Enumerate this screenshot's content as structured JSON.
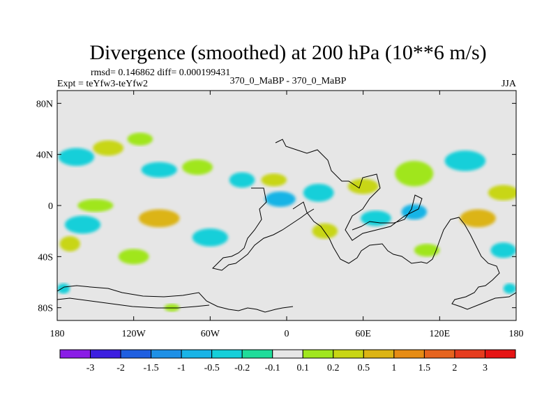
{
  "chart_data": {
    "type": "heatmap",
    "title": "Divergence (smoothed) at 200 hPa (10**6 m/s)",
    "stats": "rmsd= 0.146862 diff= 0.000199431",
    "left_label": "Expt = teYfw3-teYfw2",
    "center_label": "370_0_MaBP - 370_0_MaBP",
    "right_label": "JJA",
    "x_axis": {
      "range": [
        -180,
        180
      ],
      "ticks": [
        -180,
        -120,
        -60,
        0,
        60,
        120,
        180
      ],
      "tick_labels": [
        "180",
        "120W",
        "60W",
        "0",
        "60E",
        "120E",
        "180"
      ]
    },
    "y_axis": {
      "range": [
        -90,
        90
      ],
      "ticks": [
        80,
        40,
        0,
        -40,
        -80
      ],
      "tick_labels": [
        "80N",
        "40N",
        "0",
        "40S",
        "80S"
      ]
    },
    "colorbar": {
      "labels": [
        "-3",
        "-2",
        "-1.5",
        "-1",
        "-0.5",
        "-0.2",
        "-0.1",
        "0.1",
        "0.2",
        "0.5",
        "1",
        "1.5",
        "2",
        "3"
      ],
      "colors": [
        "#8a1ce6",
        "#3c1ee0",
        "#1f5fe0",
        "#1e90e6",
        "#19b4e6",
        "#15cfd9",
        "#20dc9a",
        "#e6e6e6",
        "#a0e61e",
        "#c8d614",
        "#dcb414",
        "#e68c14",
        "#e6641e",
        "#e63c1e",
        "#e61414"
      ]
    },
    "blobs": [
      {
        "lon": -165,
        "lat": 38,
        "rx": 14,
        "ry": 7,
        "color_index": 5
      },
      {
        "lon": -140,
        "lat": 45,
        "rx": 12,
        "ry": 6,
        "color_index": 9
      },
      {
        "lon": -115,
        "lat": 52,
        "rx": 10,
        "ry": 5,
        "color_index": 8
      },
      {
        "lon": -100,
        "lat": 28,
        "rx": 14,
        "ry": 6,
        "color_index": 5
      },
      {
        "lon": -70,
        "lat": 30,
        "rx": 12,
        "ry": 6,
        "color_index": 8
      },
      {
        "lon": -35,
        "lat": 20,
        "rx": 10,
        "ry": 6,
        "color_index": 5
      },
      {
        "lon": -5,
        "lat": 5,
        "rx": 12,
        "ry": 6,
        "color_index": 4
      },
      {
        "lon": -10,
        "lat": 20,
        "rx": 10,
        "ry": 5,
        "color_index": 9
      },
      {
        "lon": 25,
        "lat": 10,
        "rx": 12,
        "ry": 7,
        "color_index": 5
      },
      {
        "lon": 60,
        "lat": 15,
        "rx": 12,
        "ry": 6,
        "color_index": 9
      },
      {
        "lon": 100,
        "lat": 25,
        "rx": 15,
        "ry": 10,
        "color_index": 8
      },
      {
        "lon": 140,
        "lat": 35,
        "rx": 16,
        "ry": 8,
        "color_index": 5
      },
      {
        "lon": 170,
        "lat": 10,
        "rx": 12,
        "ry": 6,
        "color_index": 9
      },
      {
        "lon": -150,
        "lat": 0,
        "rx": 14,
        "ry": 5,
        "color_index": 8
      },
      {
        "lon": -160,
        "lat": -15,
        "rx": 14,
        "ry": 7,
        "color_index": 5
      },
      {
        "lon": -100,
        "lat": -10,
        "rx": 16,
        "ry": 7,
        "color_index": 10
      },
      {
        "lon": -60,
        "lat": -25,
        "rx": 14,
        "ry": 7,
        "color_index": 5
      },
      {
        "lon": -120,
        "lat": -40,
        "rx": 12,
        "ry": 6,
        "color_index": 8
      },
      {
        "lon": 30,
        "lat": -20,
        "rx": 10,
        "ry": 6,
        "color_index": 9
      },
      {
        "lon": 70,
        "lat": -10,
        "rx": 12,
        "ry": 6,
        "color_index": 5
      },
      {
        "lon": 100,
        "lat": -5,
        "rx": 10,
        "ry": 6,
        "color_index": 4
      },
      {
        "lon": 150,
        "lat": -10,
        "rx": 14,
        "ry": 7,
        "color_index": 10
      },
      {
        "lon": 170,
        "lat": -35,
        "rx": 10,
        "ry": 6,
        "color_index": 5
      },
      {
        "lon": 110,
        "lat": -35,
        "rx": 10,
        "ry": 5,
        "color_index": 8
      },
      {
        "lon": -170,
        "lat": -30,
        "rx": 8,
        "ry": 6,
        "color_index": 9
      },
      {
        "lon": -90,
        "lat": -80,
        "rx": 6,
        "ry": 3,
        "color_index": 8
      },
      {
        "lon": 175,
        "lat": -65,
        "rx": 5,
        "ry": 4,
        "color_index": 5
      },
      {
        "lon": -175,
        "lat": -65,
        "rx": 5,
        "ry": 4,
        "color_index": 5
      }
    ]
  }
}
